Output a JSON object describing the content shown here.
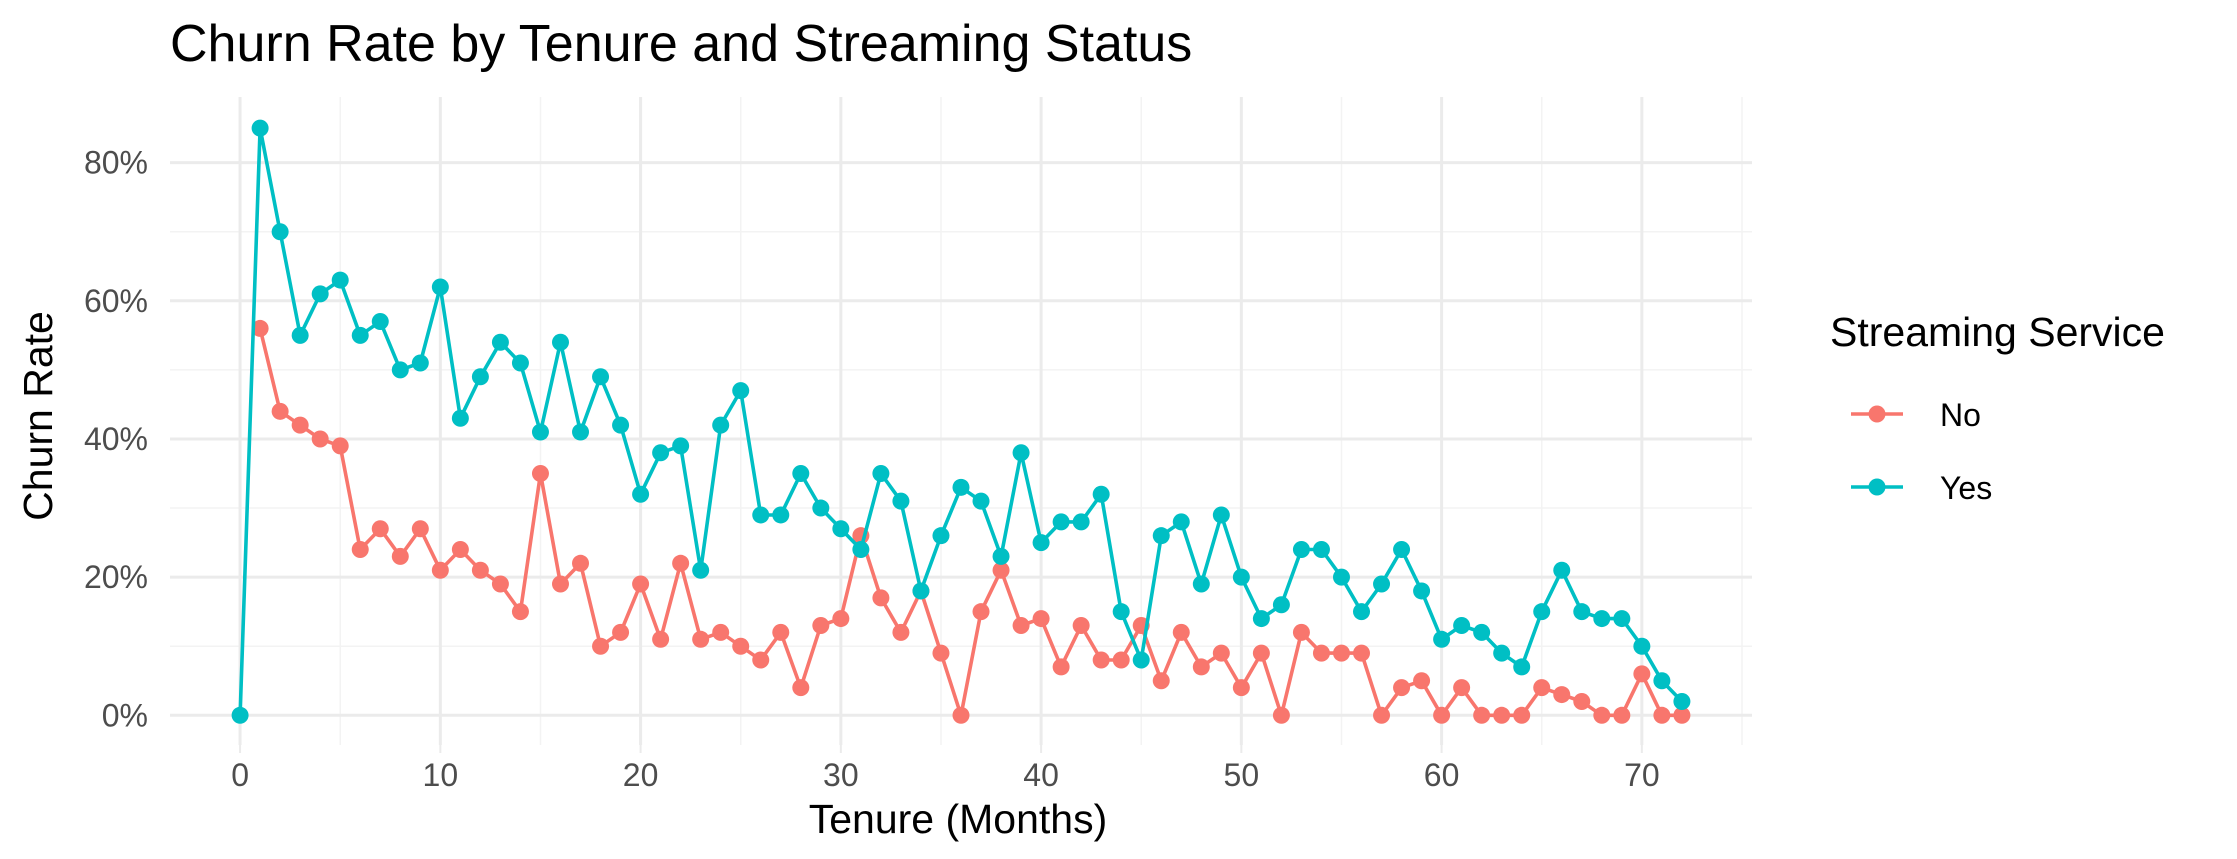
{
  "chart_data": {
    "type": "line",
    "title": "Churn Rate by Tenure and Streaming Status",
    "xlabel": "Tenure (Months)",
    "ylabel": "Churn Rate",
    "xlim": [
      -3.5,
      75.5
    ],
    "ylim": [
      -0.043,
      0.895
    ],
    "x_ticks": [
      0,
      10,
      20,
      30,
      40,
      50,
      60,
      70
    ],
    "x_tick_labels": [
      "0",
      "10",
      "20",
      "30",
      "40",
      "50",
      "60",
      "70"
    ],
    "y_ticks": [
      0,
      0.2,
      0.4,
      0.6,
      0.8
    ],
    "y_tick_labels": [
      "0%",
      "20%",
      "40%",
      "60%",
      "80%"
    ],
    "grid": true,
    "legend": {
      "title": "Streaming Service",
      "position": "right"
    },
    "series": [
      {
        "name": "No",
        "color": "#F8766D",
        "x": [
          1,
          2,
          3,
          4,
          5,
          6,
          7,
          8,
          9,
          10,
          11,
          12,
          13,
          14,
          15,
          16,
          17,
          18,
          19,
          20,
          21,
          22,
          23,
          24,
          25,
          26,
          27,
          28,
          29,
          30,
          31,
          32,
          33,
          34,
          35,
          36,
          37,
          38,
          39,
          40,
          41,
          42,
          43,
          44,
          45,
          46,
          47,
          48,
          49,
          50,
          51,
          52,
          53,
          54,
          55,
          56,
          57,
          58,
          59,
          60,
          61,
          62,
          63,
          64,
          65,
          66,
          67,
          68,
          69,
          70,
          71,
          72
        ],
        "values": [
          0.56,
          0.44,
          0.42,
          0.4,
          0.39,
          0.24,
          0.27,
          0.23,
          0.27,
          0.21,
          0.24,
          0.21,
          0.19,
          0.15,
          0.35,
          0.19,
          0.22,
          0.1,
          0.12,
          0.19,
          0.11,
          0.22,
          0.11,
          0.12,
          0.1,
          0.08,
          0.12,
          0.04,
          0.13,
          0.14,
          0.26,
          0.17,
          0.12,
          0.18,
          0.09,
          0.0,
          0.15,
          0.21,
          0.13,
          0.14,
          0.07,
          0.13,
          0.08,
          0.08,
          0.13,
          0.05,
          0.12,
          0.07,
          0.09,
          0.04,
          0.09,
          0.0,
          0.12,
          0.09,
          0.09,
          0.09,
          0.0,
          0.04,
          0.05,
          0.0,
          0.04,
          0.0,
          0.0,
          0.0,
          0.04,
          0.03,
          0.02,
          0.0,
          0.0,
          0.06,
          0.0,
          0.0
        ]
      },
      {
        "name": "Yes",
        "color": "#00BFC4",
        "x": [
          0,
          1,
          2,
          3,
          4,
          5,
          6,
          7,
          8,
          9,
          10,
          11,
          12,
          13,
          14,
          15,
          16,
          17,
          18,
          19,
          20,
          21,
          22,
          23,
          24,
          25,
          26,
          27,
          28,
          29,
          30,
          31,
          32,
          33,
          34,
          35,
          36,
          37,
          38,
          39,
          40,
          41,
          42,
          43,
          44,
          45,
          46,
          47,
          48,
          49,
          50,
          51,
          52,
          53,
          54,
          55,
          56,
          57,
          58,
          59,
          60,
          61,
          62,
          63,
          64,
          65,
          66,
          67,
          68,
          69,
          70,
          71,
          72
        ],
        "values": [
          0.0,
          0.85,
          0.7,
          0.55,
          0.61,
          0.63,
          0.55,
          0.57,
          0.5,
          0.51,
          0.62,
          0.43,
          0.49,
          0.54,
          0.51,
          0.41,
          0.54,
          0.41,
          0.49,
          0.42,
          0.32,
          0.38,
          0.39,
          0.21,
          0.42,
          0.47,
          0.29,
          0.29,
          0.35,
          0.3,
          0.27,
          0.24,
          0.35,
          0.31,
          0.18,
          0.26,
          0.33,
          0.31,
          0.23,
          0.38,
          0.25,
          0.28,
          0.28,
          0.32,
          0.15,
          0.08,
          0.26,
          0.28,
          0.19,
          0.29,
          0.2,
          0.14,
          0.16,
          0.24,
          0.24,
          0.2,
          0.15,
          0.19,
          0.24,
          0.18,
          0.11,
          0.13,
          0.12,
          0.09,
          0.07,
          0.15,
          0.21,
          0.15,
          0.14,
          0.14,
          0.1,
          0.05,
          0.02
        ]
      }
    ]
  }
}
